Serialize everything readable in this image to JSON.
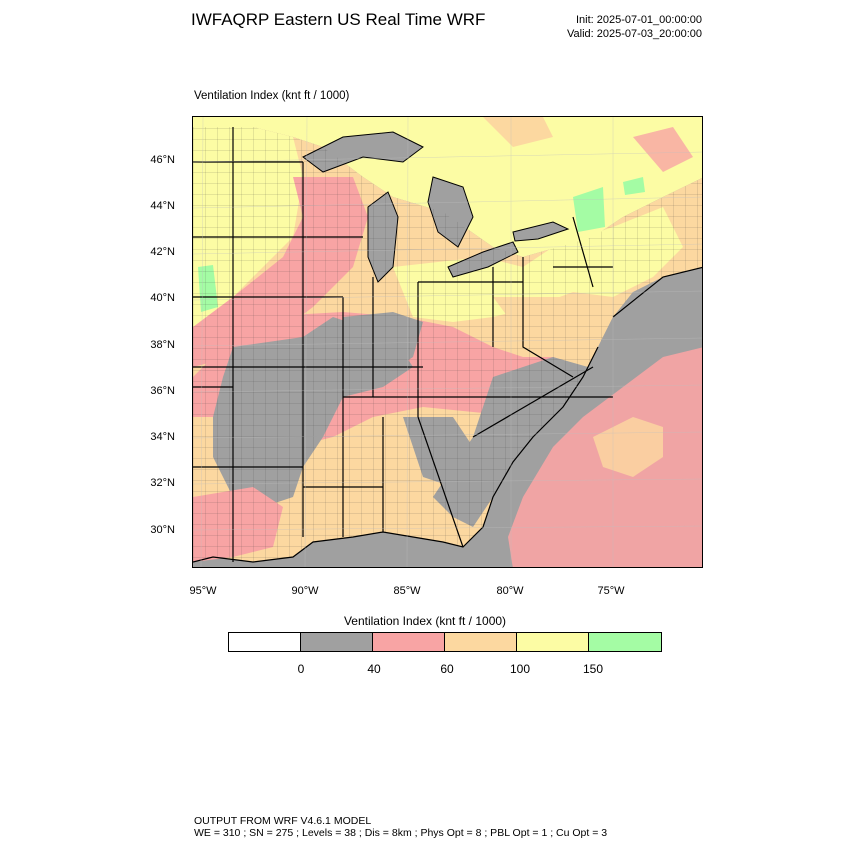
{
  "header": {
    "title": "IWFAQRP Eastern US Real Time WRF",
    "init": "Init: 2025-07-01_00:00:00",
    "valid": "Valid: 2025-07-03_20:00:00"
  },
  "map": {
    "field_title": "Ventilation Index   (knt ft / 1000)",
    "lat_labels": [
      "46°N",
      "44°N",
      "42°N",
      "40°N",
      "38°N",
      "36°N",
      "34°N",
      "32°N",
      "30°N"
    ],
    "lon_labels": [
      "95°W",
      "90°W",
      "85°W",
      "80°W",
      "75°W"
    ]
  },
  "legend": {
    "title": "Ventilation Index  (knt ft / 1000)",
    "colors": [
      "#ffffff",
      "#a0a0a0",
      "#f8a4a4",
      "#fcd8a0",
      "#fcfca4",
      "#a4fca4"
    ],
    "labels": [
      "0",
      "40",
      "60",
      "100",
      "150"
    ]
  },
  "footer": {
    "line1": "OUTPUT FROM WRF V4.6.1 MODEL",
    "line2": "WE = 310 ; SN = 275 ; Levels = 38 ; Dis = 8km ; Phys Opt = 8 ; PBL Opt = 1 ; Cu Opt = 3"
  }
}
